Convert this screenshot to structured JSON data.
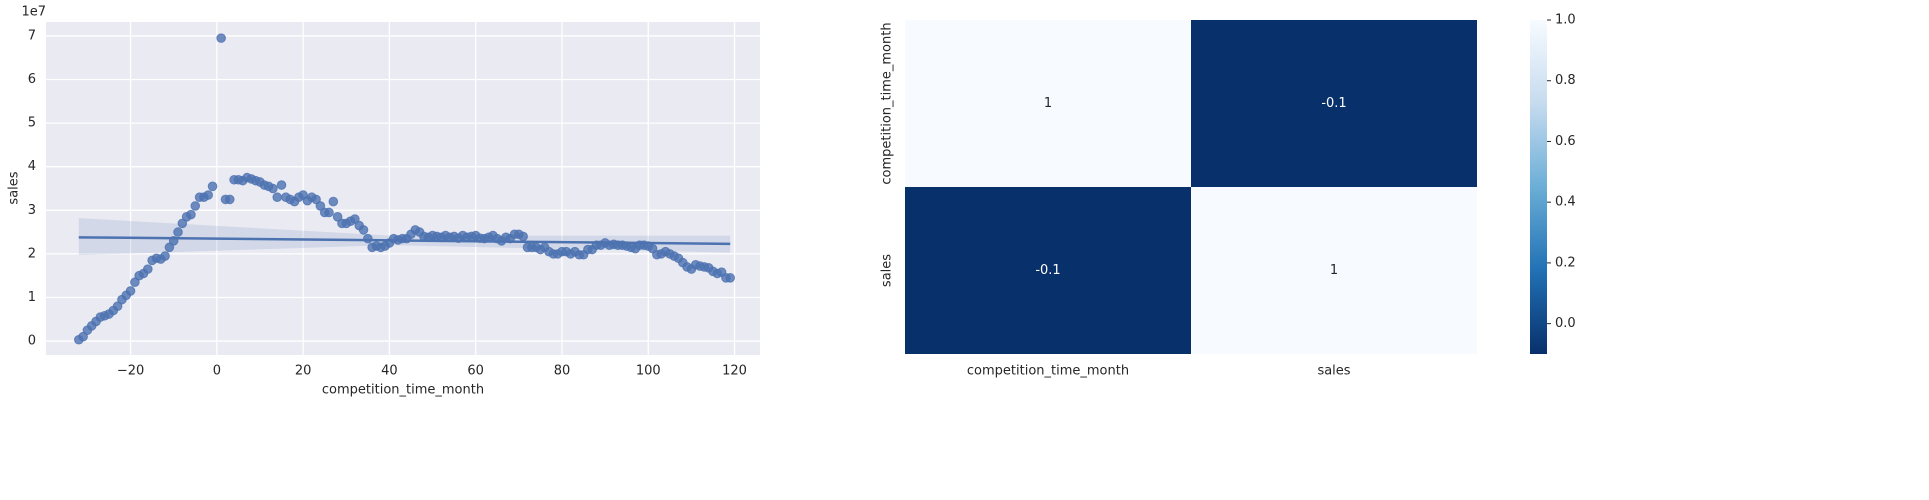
{
  "chart_data": [
    {
      "type": "scatter",
      "xlabel": "competition_time_month",
      "ylabel": "sales",
      "offset_label": "1e7",
      "x": [
        -32,
        -31,
        -30,
        -29,
        -28,
        -27,
        -26,
        -25,
        -24,
        -23,
        -22,
        -21,
        -20,
        -19,
        -18,
        -17,
        -16,
        -15,
        -14,
        -13,
        -12,
        -11,
        -10,
        -9,
        -8,
        -7,
        -6,
        -5,
        -4,
        -3,
        -2,
        -1,
        1,
        2,
        3,
        4,
        5,
        6,
        7,
        8,
        9,
        10,
        11,
        12,
        13,
        14,
        15,
        16,
        17,
        18,
        19,
        20,
        21,
        22,
        23,
        24,
        25,
        26,
        27,
        28,
        29,
        30,
        31,
        32,
        33,
        34,
        35,
        36,
        37,
        38,
        39,
        40,
        41,
        42,
        43,
        44,
        45,
        46,
        47,
        48,
        49,
        50,
        51,
        52,
        53,
        54,
        55,
        56,
        57,
        58,
        59,
        60,
        61,
        62,
        63,
        64,
        65,
        66,
        67,
        68,
        69,
        70,
        71,
        72,
        73,
        74,
        75,
        76,
        77,
        78,
        79,
        80,
        81,
        82,
        83,
        84,
        85,
        86,
        87,
        88,
        89,
        90,
        91,
        92,
        93,
        94,
        95,
        96,
        97,
        98,
        99,
        100,
        101,
        102,
        103,
        104,
        105,
        106,
        107,
        108,
        109,
        110,
        111,
        112,
        113,
        114,
        115,
        116,
        117,
        118,
        119
      ],
      "values": [
        0.03,
        0.1,
        0.25,
        0.35,
        0.45,
        0.55,
        0.58,
        0.62,
        0.7,
        0.8,
        0.95,
        1.05,
        1.15,
        1.35,
        1.5,
        1.55,
        1.65,
        1.85,
        1.9,
        1.88,
        1.95,
        2.15,
        2.3,
        2.5,
        2.7,
        2.85,
        2.9,
        3.1,
        3.3,
        3.3,
        3.35,
        3.55,
        6.95,
        3.25,
        3.25,
        3.7,
        3.7,
        3.68,
        3.75,
        3.72,
        3.68,
        3.65,
        3.58,
        3.55,
        3.5,
        3.3,
        3.58,
        3.3,
        3.25,
        3.2,
        3.3,
        3.35,
        3.22,
        3.3,
        3.25,
        3.1,
        2.95,
        2.95,
        3.2,
        2.85,
        2.7,
        2.7,
        2.75,
        2.8,
        2.65,
        2.55,
        2.35,
        2.15,
        2.18,
        2.15,
        2.18,
        2.25,
        2.35,
        2.32,
        2.35,
        2.35,
        2.45,
        2.55,
        2.5,
        2.4,
        2.38,
        2.42,
        2.4,
        2.38,
        2.42,
        2.38,
        2.4,
        2.36,
        2.42,
        2.38,
        2.4,
        2.42,
        2.36,
        2.35,
        2.38,
        2.42,
        2.35,
        2.3,
        2.38,
        2.35,
        2.45,
        2.45,
        2.4,
        2.15,
        2.15,
        2.15,
        2.1,
        2.15,
        2.05,
        2.0,
        2.0,
        2.05,
        2.05,
        2.0,
        2.05,
        1.98,
        1.98,
        2.1,
        2.1,
        2.2,
        2.2,
        2.25,
        2.2,
        2.22,
        2.2,
        2.2,
        2.18,
        2.15,
        2.12,
        2.2,
        2.2,
        2.18,
        2.12,
        1.98,
        2.0,
        2.05,
        2.0,
        1.95,
        1.9,
        1.8,
        1.7,
        1.65,
        1.75,
        1.72,
        1.7,
        1.68,
        1.6,
        1.55,
        1.58,
        1.45,
        1.45
      ],
      "color": "#4c72b0",
      "regression": {
        "x": [
          -32,
          40,
          119
        ],
        "values": [
          2.38,
          2.31,
          2.23
        ],
        "ci_lower": [
          1.97,
          2.2,
          2.03
        ],
        "ci_upper": [
          2.82,
          2.42,
          2.42
        ]
      },
      "xlim": [
        -39.6,
        125.9
      ],
      "ylim": [
        -0.32,
        7.32
      ],
      "xticks": [
        {
          "value": -20,
          "label": "−20"
        },
        0,
        20,
        40,
        60,
        80,
        100,
        120
      ],
      "yticks": [
        0,
        1,
        2,
        3,
        4,
        5,
        6,
        7
      ],
      "grid": true
    },
    {
      "type": "heatmap",
      "categories": [
        "competition_time_month",
        "sales"
      ],
      "values": [
        [
          1,
          -0.1
        ],
        [
          -0.1,
          1
        ]
      ],
      "colorscale": [
        "#08306b",
        "#2171b5",
        "#6baed6",
        "#c6dbef",
        "#f7fbff"
      ],
      "clim": [
        -0.1,
        1.0
      ],
      "cticks": [
        {
          "value": 0,
          "label": "0.0"
        },
        {
          "value": 0.2,
          "label": "0.2"
        },
        {
          "value": 0.4,
          "label": "0.4"
        },
        {
          "value": 0.6,
          "label": "0.6"
        },
        {
          "value": 0.8,
          "label": "0.8"
        },
        {
          "value": 1,
          "label": "1.0"
        }
      ]
    }
  ]
}
